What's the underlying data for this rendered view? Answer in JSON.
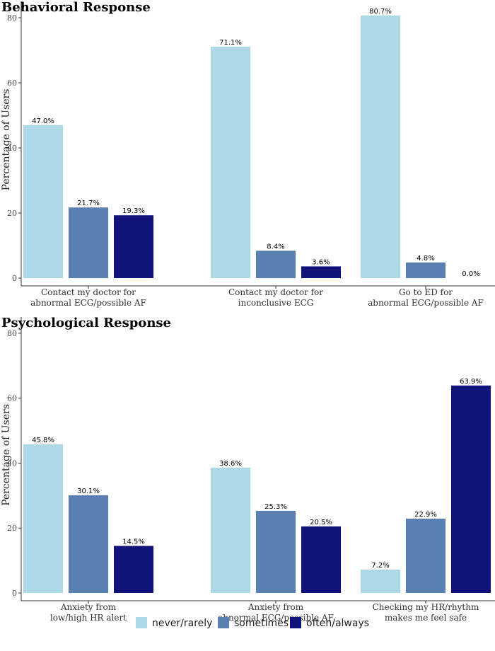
{
  "legend": [
    {
      "name": "never/rarely",
      "color": "#add8e6"
    },
    {
      "name": "sometimes",
      "color": "#5a80b2"
    },
    {
      "name": "often/always",
      "color": "#11137a"
    }
  ],
  "chart_data": [
    {
      "type": "bar",
      "title": "Behavioral Response",
      "ylabel": "Percentage of Users",
      "xlabel": "",
      "ylim": [
        0,
        85
      ],
      "yticks": [
        0,
        20,
        40,
        60,
        80
      ],
      "grid": false,
      "categories": [
        [
          "Contact my doctor for",
          "abnormal ECG/possible AF"
        ],
        [
          "Contact my doctor for",
          "inconclusive ECG"
        ],
        [
          "Go to ED for",
          "abnormal ECG/possible AF"
        ]
      ],
      "series": [
        {
          "name": "never/rarely",
          "values": [
            47.0,
            71.1,
            80.7
          ],
          "labels": [
            "47.0%",
            "71.1%",
            "80.7%"
          ]
        },
        {
          "name": "sometimes",
          "values": [
            21.7,
            8.4,
            4.8
          ],
          "labels": [
            "21.7%",
            "8.4%",
            "4.8%"
          ]
        },
        {
          "name": "often/always",
          "values": [
            19.3,
            3.6,
            0.0
          ],
          "labels": [
            "19.3%",
            "3.6%",
            "0.0%"
          ]
        }
      ]
    },
    {
      "type": "bar",
      "title": "Psychological Response",
      "ylabel": "Percentage of Users",
      "xlabel": "",
      "ylim": [
        0,
        85
      ],
      "yticks": [
        0,
        20,
        40,
        60,
        80
      ],
      "grid": false,
      "categories": [
        [
          "Anxiety from",
          "low/high HR alert"
        ],
        [
          "Anxiety from",
          "abnormal ECG/possible AF"
        ],
        [
          "Checking my HR/rhythm",
          "makes me feel safe"
        ]
      ],
      "series": [
        {
          "name": "never/rarely",
          "values": [
            45.8,
            38.6,
            7.2
          ],
          "labels": [
            "45.8%",
            "38.6%",
            "7.2%"
          ]
        },
        {
          "name": "sometimes",
          "values": [
            30.1,
            25.3,
            22.9
          ],
          "labels": [
            "30.1%",
            "25.3%",
            "22.9%"
          ]
        },
        {
          "name": "often/always",
          "values": [
            14.5,
            20.5,
            63.9
          ],
          "labels": [
            "14.5%",
            "20.5%",
            "63.9%"
          ]
        }
      ]
    }
  ]
}
